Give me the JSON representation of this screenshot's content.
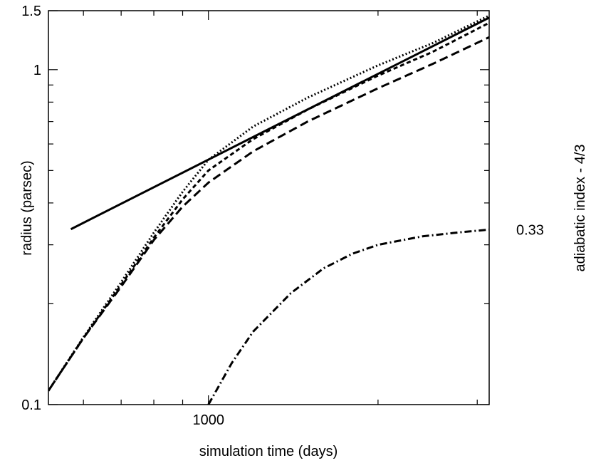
{
  "chart_data": {
    "type": "line",
    "title": "",
    "xlabel": "simulation time (days)",
    "ylabel": "radius (parsec)",
    "y2label": "adiabatic index - 4/3",
    "x_scale": "log",
    "y_scale": "log",
    "xlim": [
      520,
      3150
    ],
    "ylim": [
      0.1,
      1.5
    ],
    "x_tick_labels": [
      {
        "value": 1000,
        "label": "1000"
      }
    ],
    "x_minor_ticks": [
      600,
      700,
      800,
      900,
      2000,
      3000
    ],
    "y_tick_labels": [
      {
        "value": 0.1,
        "label": "0.1"
      },
      {
        "value": 1,
        "label": "1"
      },
      {
        "value": 1.5,
        "label": "1.5"
      }
    ],
    "y_minor_ticks": [
      0.2,
      0.3,
      0.4,
      0.5,
      0.6,
      0.7,
      0.8,
      0.9
    ],
    "y2_tick_labels": [
      {
        "value": 0.33,
        "label": "0.33",
        "plot_y": 0.333
      }
    ],
    "grid": false,
    "legend": "none",
    "series": [
      {
        "style": "solid",
        "x": [
          570,
          3150
        ],
        "y": [
          0.334,
          1.43
        ]
      },
      {
        "style": "dotted",
        "x": [
          520,
          600,
          700,
          800,
          900,
          1000,
          1200,
          1500,
          2000,
          2500,
          3150
        ],
        "y": [
          0.11,
          0.159,
          0.232,
          0.326,
          0.432,
          0.538,
          0.676,
          0.825,
          1.03,
          1.2,
          1.45
        ]
      },
      {
        "style": "dashed-short",
        "x": [
          520,
          600,
          700,
          800,
          900,
          1000,
          1200,
          1500,
          2000,
          2500,
          3150
        ],
        "y": [
          0.11,
          0.158,
          0.228,
          0.315,
          0.41,
          0.5,
          0.62,
          0.76,
          0.96,
          1.13,
          1.38
        ]
      },
      {
        "style": "dashed-long",
        "x": [
          520,
          600,
          700,
          800,
          900,
          1000,
          1200,
          1500,
          2000,
          2500,
          3150
        ],
        "y": [
          0.11,
          0.158,
          0.225,
          0.31,
          0.39,
          0.46,
          0.57,
          0.7,
          0.88,
          1.04,
          1.25
        ]
      },
      {
        "style": "dash-dot",
        "x": [
          1000,
          1100,
          1200,
          1400,
          1600,
          1800,
          2000,
          2400,
          2800,
          3150
        ],
        "y": [
          0.1,
          0.133,
          0.165,
          0.215,
          0.255,
          0.282,
          0.3,
          0.318,
          0.327,
          0.333
        ]
      }
    ]
  }
}
